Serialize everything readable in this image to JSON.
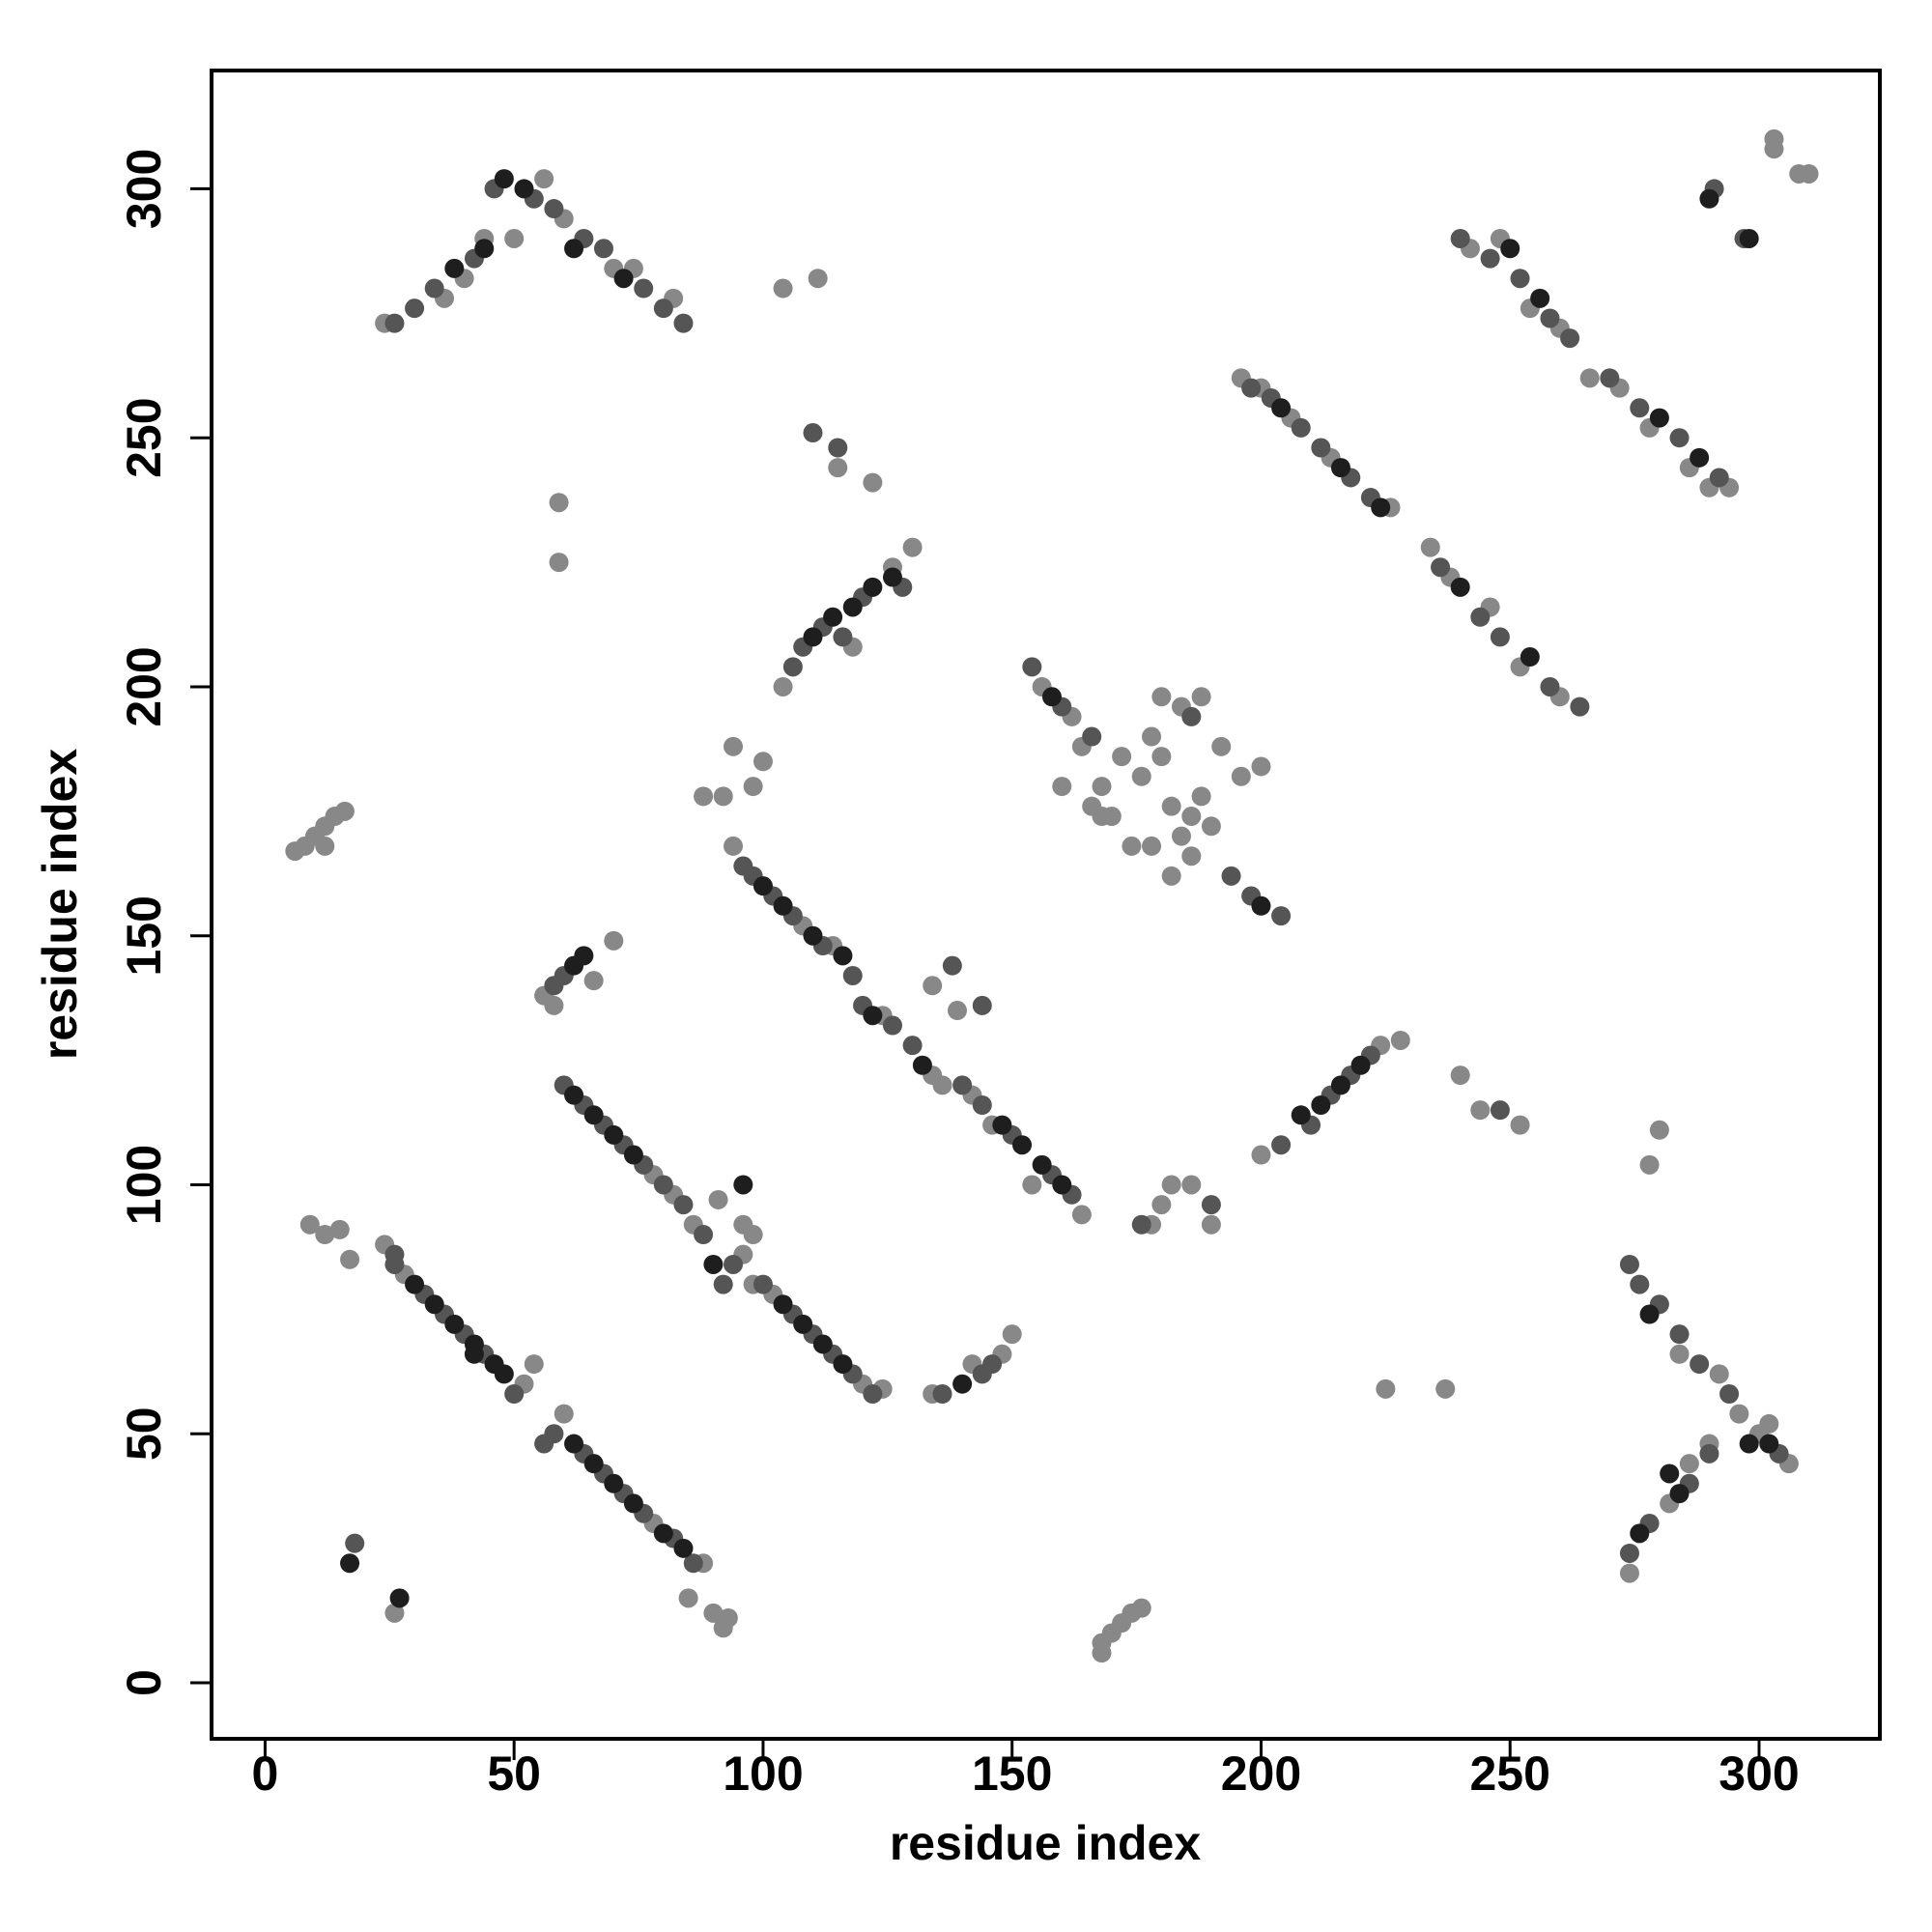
{
  "chart_data": {
    "type": "scatter",
    "xlabel": "residue index",
    "ylabel": "residue index",
    "xlim": [
      -10.75,
      324.25
    ],
    "ylim": [
      -11.25,
      323.75
    ],
    "xticks": [
      0,
      50,
      100,
      150,
      200,
      250,
      300
    ],
    "yticks": [
      0,
      50,
      100,
      150,
      200,
      250,
      300
    ],
    "series": [
      {
        "color": "#888888",
        "x": [
          28,
          52,
          54,
          60,
          78,
          88,
          24,
          78,
          82,
          86,
          96,
          98,
          102,
          120,
          124,
          94,
          108,
          114,
          124,
          134,
          142,
          146,
          154,
          164,
          104,
          118,
          126,
          130,
          200,
          224,
          228,
          24,
          36,
          40,
          44,
          50,
          56,
          60,
          70,
          74,
          82,
          156,
          162,
          164,
          168,
          170,
          172,
          176,
          178,
          180,
          182,
          184,
          186,
          188,
          190,
          184,
          180,
          188,
          192,
          196,
          200,
          166,
          174,
          178,
          182,
          168,
          186,
          160,
          196,
          200,
          206,
          214,
          226,
          234,
          238,
          246,
          252,
          260,
          242,
          248,
          254,
          260,
          266,
          272,
          278,
          286,
          290,
          294,
          284,
          292,
          296,
          300,
          302,
          306,
          286,
          282,
          290,
          274,
          6,
          8,
          10,
          12,
          14,
          16,
          12,
          58,
          56,
          66,
          70,
          134,
          142,
          148,
          150,
          168,
          170,
          172,
          174,
          176,
          168,
          178,
          180,
          182,
          186,
          190,
          9,
          12,
          15,
          17,
          26,
          85,
          90,
          92,
          93,
          225,
          237,
          240,
          244,
          252,
          280,
          278,
          134,
          139,
          104,
          111,
          115,
          122,
          59,
          59,
          91,
          96,
          98,
          94,
          100,
          98,
          88,
          92,
          303,
          303,
          310,
          308,
          136
        ],
        "values": [
          82,
          60,
          64,
          54,
          32,
          24,
          88,
          102,
          98,
          92,
          86,
          80,
          78,
          60,
          59,
          168,
          152,
          148,
          134,
          122,
          118,
          112,
          100,
          94,
          200,
          208,
          224,
          228,
          106,
          128,
          129,
          273,
          278,
          282,
          290,
          290,
          302,
          294,
          284,
          284,
          278,
          200,
          194,
          188,
          180,
          174,
          186,
          182,
          190,
          186,
          176,
          170,
          166,
          178,
          172,
          196,
          198,
          198,
          188,
          182,
          184,
          176,
          168,
          168,
          162,
          174,
          174,
          180,
          262,
          260,
          254,
          246,
          236,
          228,
          222,
          216,
          204,
          198,
          288,
          290,
          276,
          272,
          262,
          260,
          252,
          244,
          240,
          240,
          66,
          62,
          54,
          50,
          52,
          44,
          44,
          36,
          48,
          22,
          167,
          168,
          170,
          172,
          174,
          175,
          168,
          136,
          138,
          141,
          149,
          58,
          64,
          66,
          70,
          6,
          10,
          12,
          14,
          15,
          8,
          92,
          96,
          100,
          100,
          92,
          92,
          90,
          91,
          85,
          14,
          17,
          14,
          11,
          13,
          59,
          59,
          122,
          115,
          112,
          111,
          104,
          140,
          135,
          280,
          282,
          244,
          241,
          237,
          225,
          97,
          92,
          90,
          188,
          185,
          180,
          178,
          178,
          310,
          308,
          303,
          303,
          120
        ]
      },
      {
        "color": "#555555",
        "x": [
          26,
          32,
          36,
          40,
          44,
          50,
          58,
          64,
          68,
          72,
          76,
          82,
          86,
          60,
          64,
          68,
          72,
          76,
          80,
          84,
          88,
          100,
          106,
          110,
          114,
          118,
          122,
          96,
          98,
          102,
          106,
          112,
          118,
          120,
          126,
          130,
          140,
          144,
          150,
          158,
          162,
          106,
          108,
          112,
          116,
          120,
          128,
          204,
          210,
          214,
          218,
          222,
          26,
          30,
          34,
          42,
          46,
          54,
          58,
          64,
          68,
          76,
          80,
          84,
          154,
          160,
          166,
          194,
          198,
          204,
          198,
          202,
          208,
          212,
          218,
          222,
          236,
          244,
          248,
          258,
          264,
          240,
          246,
          252,
          258,
          262,
          270,
          276,
          284,
          292,
          274,
          276,
          280,
          284,
          288,
          294,
          274,
          278,
          286,
          290,
          304,
          58,
          60,
          136,
          144,
          146,
          94,
          92,
          26,
          56,
          18,
          138,
          144,
          110,
          115,
          248,
          291,
          297,
          176,
          190,
          186
        ],
        "values": [
          84,
          78,
          74,
          70,
          66,
          58,
          50,
          46,
          42,
          38,
          34,
          29,
          24,
          120,
          116,
          112,
          108,
          104,
          100,
          96,
          90,
          80,
          74,
          70,
          66,
          62,
          58,
          164,
          162,
          158,
          154,
          148,
          142,
          136,
          132,
          128,
          120,
          116,
          110,
          102,
          98,
          204,
          208,
          212,
          210,
          218,
          220,
          108,
          112,
          118,
          122,
          126,
          273,
          276,
          280,
          286,
          300,
          298,
          296,
          290,
          288,
          280,
          276,
          273,
          204,
          196,
          190,
          162,
          158,
          154,
          260,
          258,
          252,
          248,
          242,
          238,
          224,
          214,
          210,
          200,
          196,
          290,
          286,
          282,
          274,
          270,
          262,
          256,
          250,
          242,
          84,
          80,
          76,
          70,
          64,
          58,
          26,
          32,
          40,
          46,
          46,
          140,
          142,
          58,
          62,
          64,
          84,
          80,
          86,
          48,
          28,
          144,
          136,
          251,
          248,
          115,
          300,
          290,
          92,
          96,
          194
        ]
      },
      {
        "color": "#1e1e1e",
        "x": [
          30,
          34,
          38,
          42,
          46,
          48,
          62,
          66,
          70,
          74,
          80,
          84,
          62,
          66,
          70,
          74,
          104,
          108,
          112,
          116,
          100,
          104,
          110,
          116,
          122,
          132,
          148,
          152,
          156,
          160,
          110,
          114,
          118,
          122,
          126,
          208,
          212,
          216,
          220,
          38,
          44,
          48,
          52,
          62,
          72,
          204,
          216,
          224,
          240,
          254,
          250,
          256,
          280,
          288,
          282,
          284,
          298,
          302,
          278,
          276,
          158,
          200,
          62,
          64,
          140,
          290,
          298,
          90,
          17,
          27,
          42,
          96
        ],
        "values": [
          80,
          76,
          72,
          68,
          64,
          62,
          48,
          44,
          40,
          36,
          30,
          27,
          118,
          114,
          110,
          106,
          76,
          72,
          68,
          64,
          160,
          156,
          150,
          146,
          134,
          124,
          112,
          108,
          104,
          100,
          210,
          214,
          216,
          220,
          222,
          114,
          116,
          120,
          124,
          284,
          288,
          302,
          300,
          288,
          282,
          256,
          244,
          236,
          220,
          206,
          288,
          278,
          254,
          246,
          42,
          38,
          48,
          48,
          74,
          30,
          198,
          156,
          144,
          146,
          60,
          298,
          290,
          84,
          24,
          17,
          66,
          100
        ]
      }
    ]
  }
}
